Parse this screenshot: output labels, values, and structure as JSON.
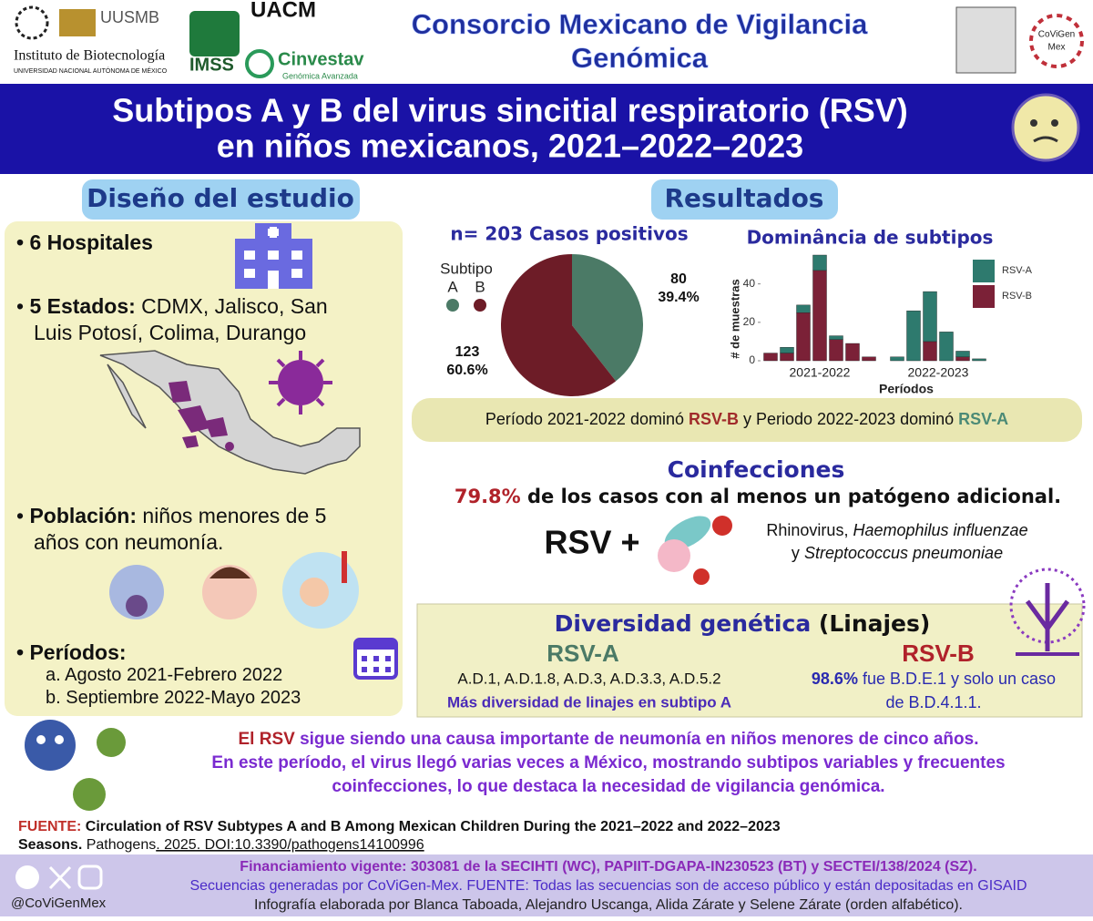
{
  "header": {
    "title_line1": "Consorcio Mexicano de Vigilancia",
    "title_line2": "Genómica",
    "logos": [
      "Instituto de Biotecnología",
      "UNIVERSIDAD NACIONAL AUTÓNOMA DE MÉXICO",
      "UUSMB",
      "UACM",
      "IMSS",
      "Cinvestav",
      "Genómica Avanzada",
      "CoViGen",
      "Mex"
    ]
  },
  "banner": {
    "line1": "Subtipos A y B del virus sincitial respiratorio (RSV)",
    "line2": "en niños mexicanos, 2021–2022–2023"
  },
  "design": {
    "heading": "Diseño del estudio",
    "hospitals": "6 Hospitales",
    "states_label": "5 Estados:",
    "states_line1": "CDMX, Jalisco, San",
    "states_line2": "Luis Potosí, Colima, Durango",
    "population_label": "Población:",
    "population_line1": "niños menores de 5",
    "population_line2": "años con neumonía.",
    "periods_label": "Períodos:",
    "periods": [
      {
        "marker": "a.",
        "text": "Agosto 2021-Febrero 2022"
      },
      {
        "marker": "b.",
        "text": "Septiembre 2022-Mayo 2023"
      }
    ]
  },
  "results": {
    "heading": "Resultados",
    "pie": {
      "type": "pie",
      "title": "n= 203 Casos positivos",
      "legend_title": "Subtipo",
      "categories": [
        "A",
        "B"
      ],
      "values": [
        80,
        123
      ],
      "value_labels": [
        "39.4%",
        "60.6%"
      ],
      "colors": [
        "#4b7a66",
        "#6d1c27"
      ]
    },
    "bars": {
      "type": "stacked-bar",
      "title": "Dominância de subtipos",
      "y_label": "# de muestras",
      "x_label": "Períodos",
      "group_labels": [
        "2021-2022",
        "2022-2023"
      ],
      "categories": [
        null,
        null,
        null,
        null,
        null,
        null,
        null,
        null,
        null,
        null,
        null,
        null,
        null
      ],
      "ylim": [
        0,
        55
      ],
      "yticks": [
        0,
        20,
        40
      ],
      "series": [
        {
          "name": "RSV-A",
          "color": "#2e7a6e",
          "values": [
            0,
            3,
            4,
            8,
            2,
            0,
            0,
            2,
            26,
            26,
            15,
            3,
            1
          ]
        },
        {
          "name": "RSV-B",
          "color": "#7b2137",
          "values": [
            4,
            4,
            25,
            47,
            11,
            9,
            2,
            0,
            0,
            10,
            0,
            2,
            0
          ]
        }
      ]
    },
    "note": [
      "Período 2021-2022 dominó ",
      "RSV-B",
      " y Periodo 2022-2023 dominó ",
      "RSV-A"
    ]
  },
  "coinfections": {
    "heading": "Coinfecciones",
    "percent": "79.8%",
    "text": " de los casos con al menos un patógeno adicional.",
    "rsv_plus": "RSV +",
    "pathogens_line1": [
      "Rhinovirus, ",
      "Haemophilus influenzae"
    ],
    "pathogens_line2": [
      "y ",
      "Streptococcus pneumoniae"
    ]
  },
  "diversity": {
    "heading": "Diversidad genética",
    "heading_suffix": " (Linajes)",
    "a_title": "RSV-A",
    "a_lineages": "A.D.1, A.D.1.8, A.D.3, A.D.3.3, A.D.5.2",
    "a_note": "Más diversidad de linajes en subtipo A",
    "b_title": "RSV-B",
    "b_percent": "98.6%",
    "b_text1": " fue B.D.E.1 y solo un caso",
    "b_text2": "de B.D.4.1.1."
  },
  "conclusion": {
    "line1": [
      "El RSV",
      " sigue siendo una causa importante de neumonía en niños menores de cinco años."
    ],
    "line2": "En este período, el virus llegó varias veces a México, mostrando subtipos variables y frecuentes",
    "line3": "coinfecciones, lo que destaca la necesidad de vigilancia genómica."
  },
  "source": {
    "label": "FUENTE:",
    "line1": " Circulation of RSV Subtypes A and B Among Mexican Children During the 2021–2022 and 2022–2023",
    "line2": "Seasons.",
    "journal": " Pathogens",
    "ref": ". 2025. DOI:10.3390/pathogens14100996"
  },
  "footer": {
    "handle": "@CoViGenMex",
    "funding": "Financiamiento vigente: 303081 de la SECIHTI (WC), PAPIIT-DGAPA-IN230523 (BT) y SECTEI/138/2024 (SZ).",
    "sequences": "Secuencias generadas por CoViGen-Mex. FUENTE: Todas las secuencias son de acceso público y están depositadas en GISAID",
    "authors": "Infografía elaborada por Blanca Taboada, Alejandro Uscanga, Alida Zárate y Selene Zárate (orden alfabético)."
  }
}
